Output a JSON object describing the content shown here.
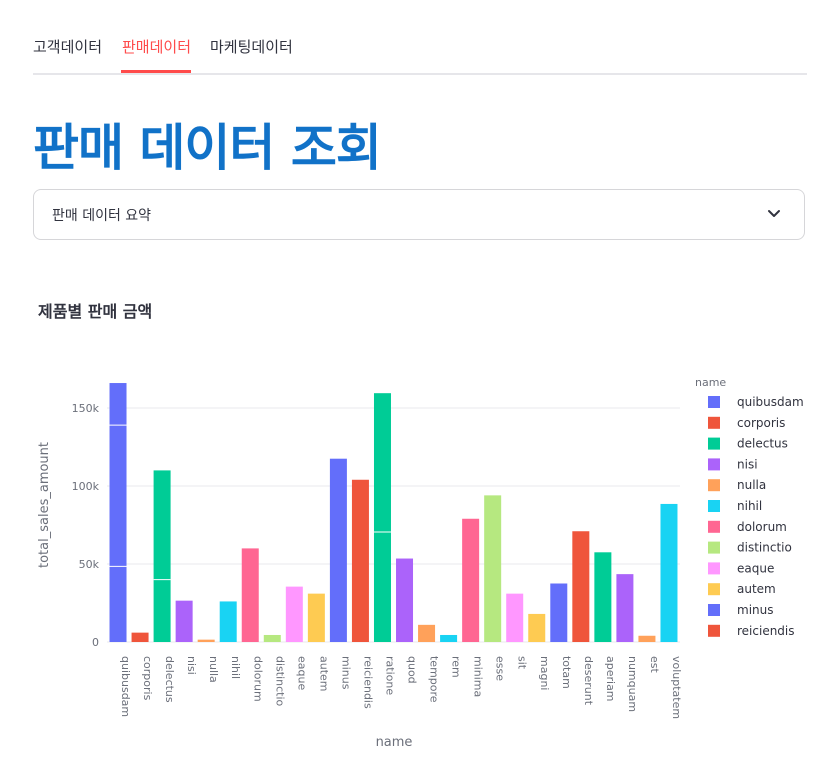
{
  "tabs": [
    {
      "label": "고객데이터",
      "active": false
    },
    {
      "label": "판매데이터",
      "active": true
    },
    {
      "label": "마케팅데이터",
      "active": false
    }
  ],
  "page_title": "판매 데이터 조회",
  "expander": {
    "label": "판매 데이터 요약",
    "icon": "chevron-down-icon"
  },
  "chart_title": "제품별 판매 금액",
  "chart_data": {
    "type": "bar",
    "xlabel": "name",
    "ylabel": "total_sales_amount",
    "ylim": [
      0,
      170000
    ],
    "yticks": [
      0,
      50000,
      100000,
      150000
    ],
    "ytick_labels": [
      "0",
      "50k",
      "100k",
      "150k"
    ],
    "legend_title": "name",
    "legend_position": "right",
    "grid": true,
    "categories": [
      "quibusdam",
      "corporis",
      "delectus",
      "nisi",
      "nulla",
      "nihil",
      "dolorum",
      "distinctio",
      "eaque",
      "autem",
      "minus",
      "reiciendis",
      "ratione",
      "quod",
      "tempore",
      "rem",
      "minima",
      "esse",
      "sit",
      "magni",
      "totam",
      "deserunt",
      "aperiam",
      "numquam",
      "est",
      "voluptatem"
    ],
    "values": [
      166000,
      6000,
      110000,
      26500,
      1500,
      26000,
      60000,
      4500,
      35500,
      31000,
      117500,
      104000,
      159500,
      53500,
      11000,
      4500,
      79000,
      94000,
      31000,
      18000,
      37500,
      71000,
      57500,
      43500,
      4000,
      88500
    ],
    "segment_breaks": [
      [
        139000,
        48500
      ],
      [],
      [
        40000
      ],
      [],
      [],
      [],
      [],
      [],
      [],
      [],
      [],
      [],
      [
        70500
      ],
      [],
      [],
      [],
      [],
      [],
      [],
      [],
      [],
      [],
      [],
      [],
      [],
      []
    ],
    "colors": [
      "#636efa",
      "#ef553b",
      "#00cc96",
      "#ab63fa",
      "#ffa15a",
      "#19d3f3",
      "#ff6692",
      "#b6e880",
      "#ff97ff",
      "#fecb52"
    ],
    "legend_entries": [
      "quibusdam",
      "corporis",
      "delectus",
      "nisi",
      "nulla",
      "nihil",
      "dolorum",
      "distinctio",
      "eaque",
      "autem",
      "minus",
      "reiciendis"
    ]
  }
}
